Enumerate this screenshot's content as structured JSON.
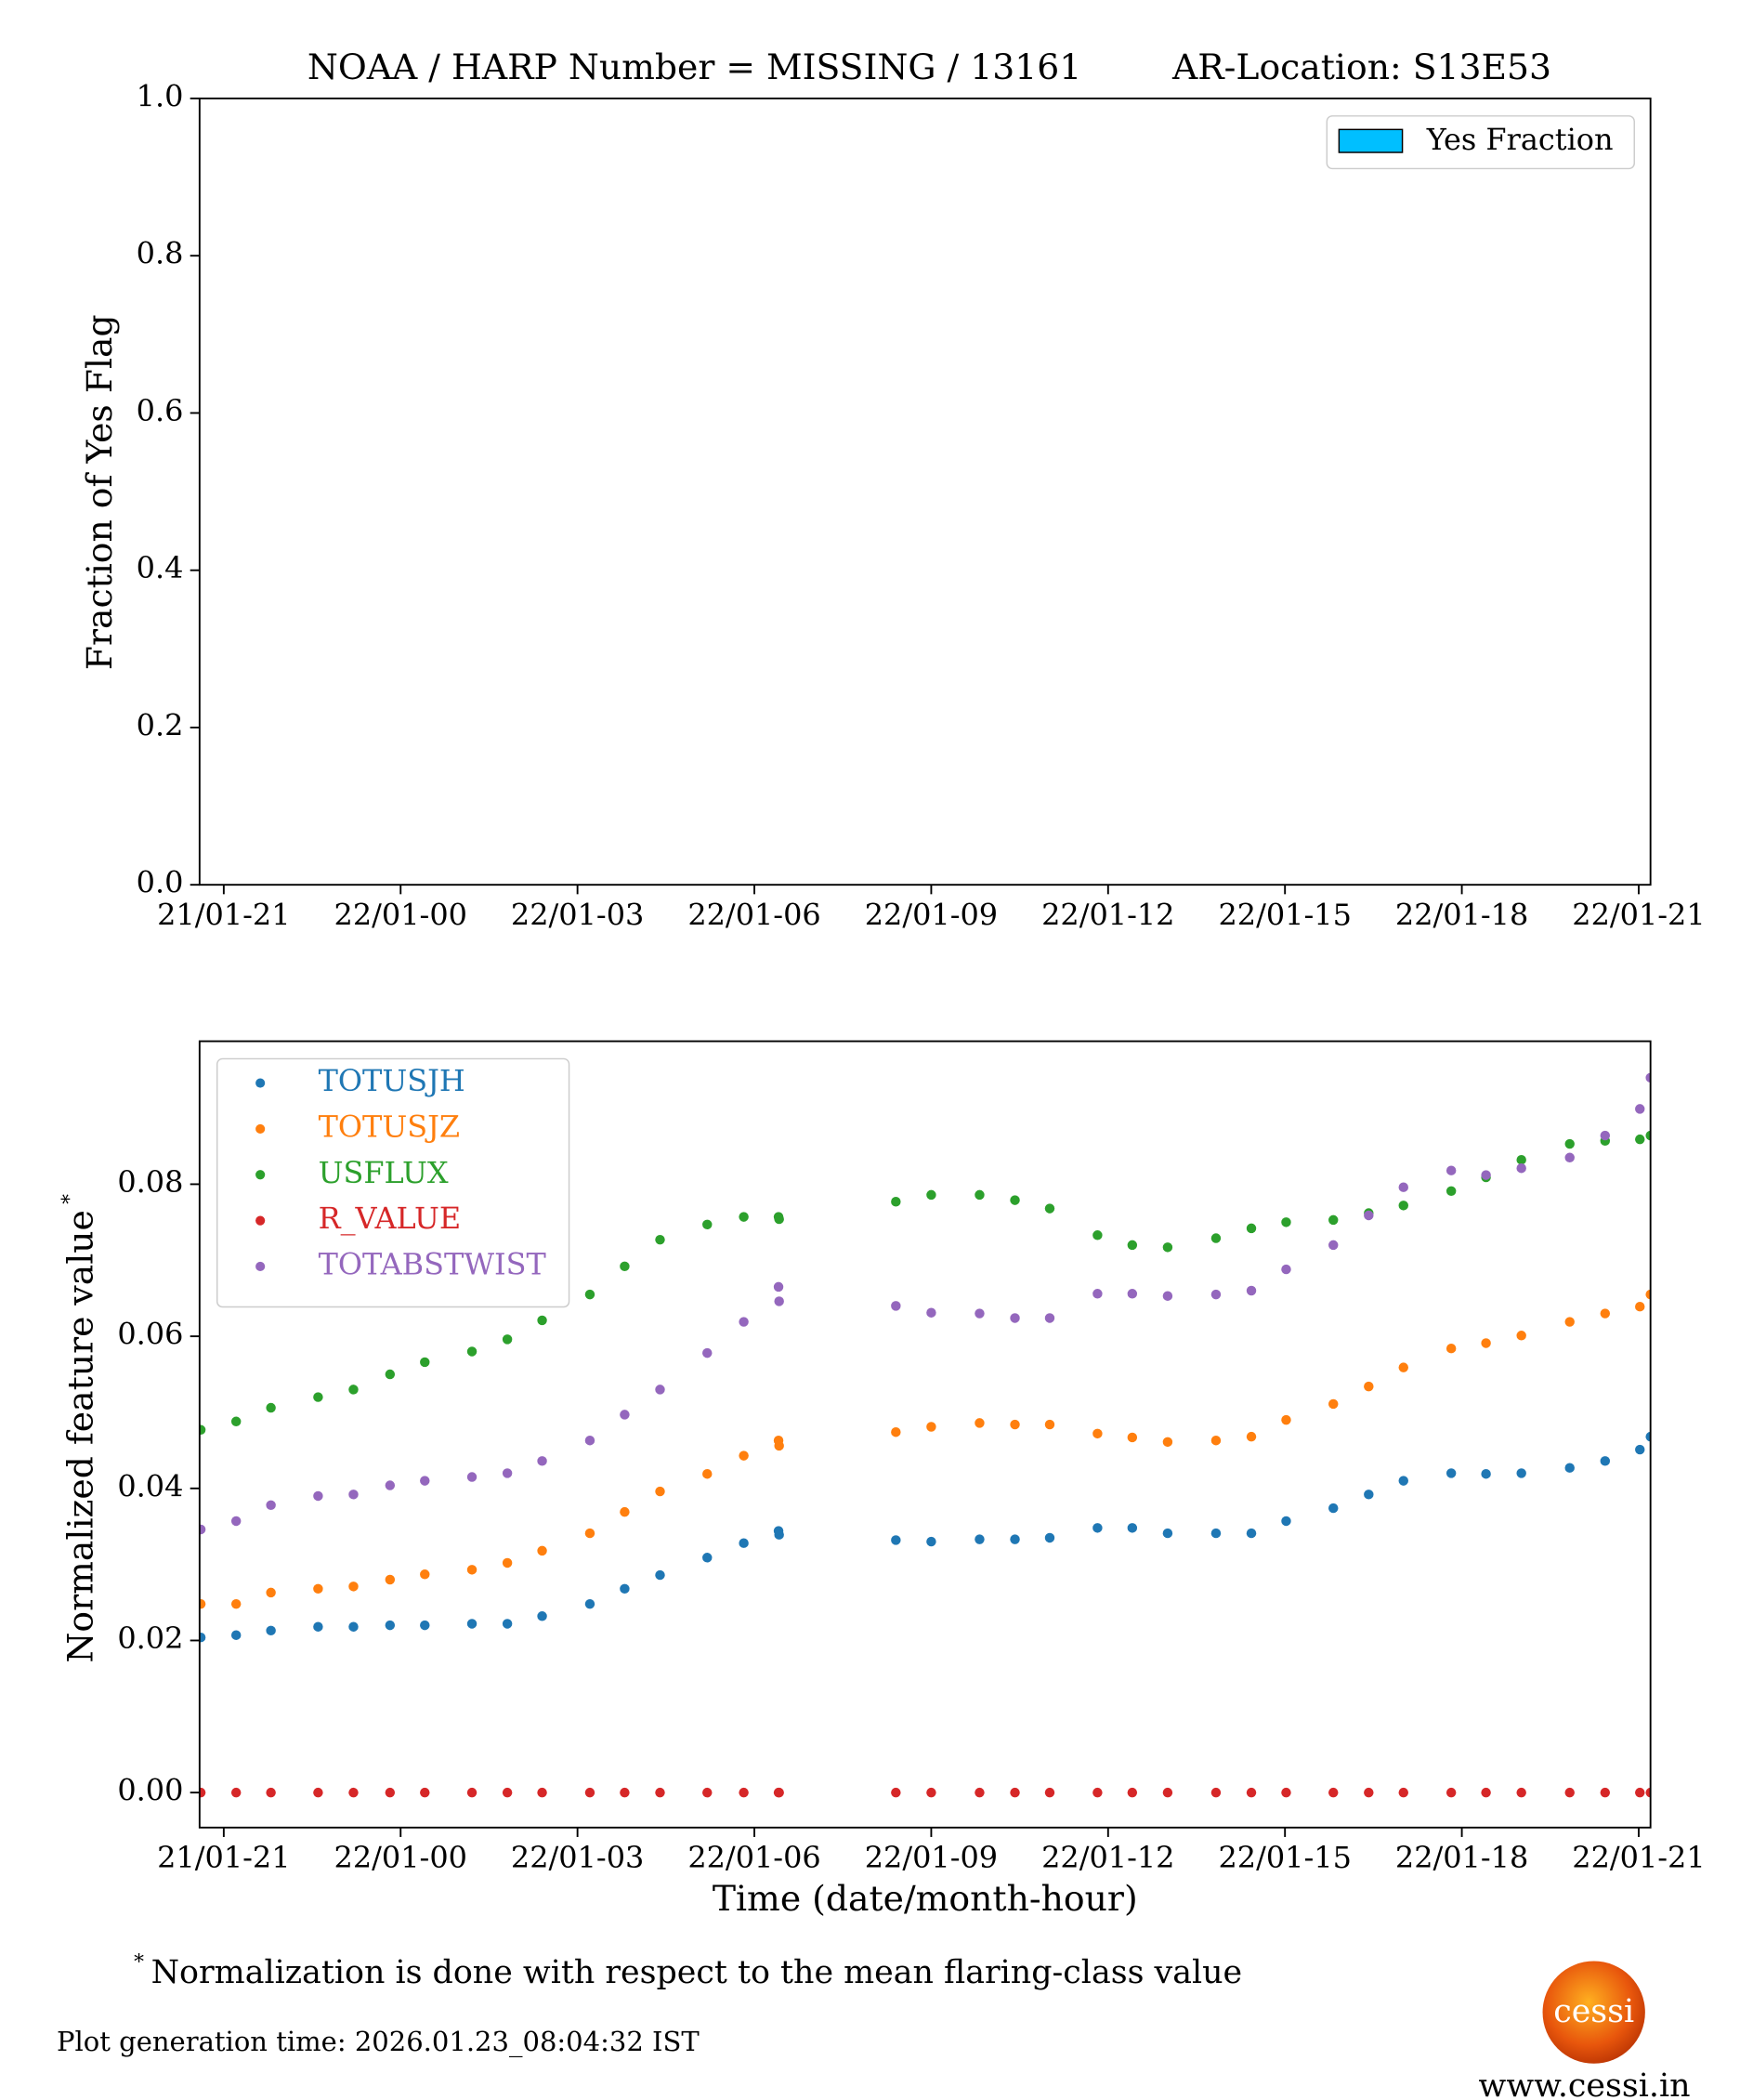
{
  "chart_data": [
    {
      "type": "bar",
      "title": "NOAA / HARP Number = MISSING / 13161",
      "subtitle": "AR-Location: S13E53",
      "y_label": "Fraction of Yes Flag",
      "x": [],
      "series": [
        {
          "name": "Yes Fraction",
          "color": "#00bfff",
          "values": []
        }
      ],
      "xlim": [
        20.59,
        45.2
      ],
      "xticks": [
        {
          "value": 21,
          "label": "21/01-21"
        },
        {
          "value": 24,
          "label": "22/01-00"
        },
        {
          "value": 27,
          "label": "22/01-03"
        },
        {
          "value": 30,
          "label": "22/01-06"
        },
        {
          "value": 33,
          "label": "22/01-09"
        },
        {
          "value": 36,
          "label": "22/01-12"
        },
        {
          "value": 39,
          "label": "22/01-15"
        },
        {
          "value": 42,
          "label": "22/01-18"
        },
        {
          "value": 45,
          "label": "22/01-21"
        }
      ],
      "ylim": [
        0,
        1
      ],
      "yticks": [
        {
          "value": 0,
          "label": "0.0"
        },
        {
          "value": 0.2,
          "label": "0.2"
        },
        {
          "value": 0.4,
          "label": "0.4"
        },
        {
          "value": 0.6,
          "label": "0.6"
        },
        {
          "value": 0.8,
          "label": "0.8"
        },
        {
          "value": 1,
          "label": "1.0"
        }
      ],
      "legend": "upper right"
    },
    {
      "type": "scatter",
      "x_label": "Time (date/month-hour)",
      "y_label": "Normalized feature value",
      "y_label_mark": "*",
      "x": [
        20.61,
        21.21,
        21.8,
        22.6,
        23.2,
        23.82,
        24.41,
        25.21,
        25.81,
        26.4,
        27.21,
        27.8,
        28.4,
        29.2,
        29.82,
        30.41,
        30.42,
        32.4,
        33.0,
        33.82,
        34.42,
        35.01,
        35.82,
        36.41,
        37.01,
        37.83,
        38.43,
        39.02,
        39.82,
        40.42,
        41.01,
        41.82,
        42.41,
        43.01,
        43.83,
        44.43,
        45.02,
        45.2
      ],
      "series": [
        {
          "name": "TOTUSJH",
          "color": "#1f77b4",
          "values": [
            0.0204,
            0.0207,
            0.0213,
            0.0218,
            0.0218,
            0.022,
            0.022,
            0.0222,
            0.0222,
            0.0232,
            0.0248,
            0.0268,
            0.0286,
            0.0309,
            0.0328,
            0.0344,
            0.0339,
            0.0332,
            0.033,
            0.0333,
            0.0333,
            0.0335,
            0.0348,
            0.0348,
            0.0341,
            0.0341,
            0.0341,
            0.0357,
            0.0374,
            0.0392,
            0.041,
            0.042,
            0.0419,
            0.042,
            0.0427,
            0.0436,
            0.0451,
            0.0468
          ]
        },
        {
          "name": "TOTUSJZ",
          "color": "#ff7f0e",
          "values": [
            0.0248,
            0.0248,
            0.0263,
            0.0268,
            0.0271,
            0.028,
            0.0287,
            0.0293,
            0.0302,
            0.0318,
            0.0341,
            0.0369,
            0.0396,
            0.0419,
            0.0443,
            0.0463,
            0.0456,
            0.0474,
            0.0481,
            0.0486,
            0.0484,
            0.0484,
            0.0472,
            0.0467,
            0.0461,
            0.0463,
            0.0468,
            0.049,
            0.0511,
            0.0534,
            0.0559,
            0.0584,
            0.0591,
            0.0601,
            0.0619,
            0.063,
            0.0639,
            0.0655
          ]
        },
        {
          "name": "USFLUX",
          "color": "#2ca02c",
          "values": [
            0.0477,
            0.0488,
            0.0506,
            0.052,
            0.053,
            0.055,
            0.0566,
            0.058,
            0.0596,
            0.0621,
            0.0655,
            0.0692,
            0.0727,
            0.0747,
            0.0757,
            0.0757,
            0.0754,
            0.0777,
            0.0786,
            0.0786,
            0.0779,
            0.0768,
            0.0733,
            0.072,
            0.0717,
            0.0729,
            0.0742,
            0.075,
            0.0753,
            0.0762,
            0.0772,
            0.0791,
            0.0809,
            0.0832,
            0.0853,
            0.0857,
            0.0859,
            0.0864
          ]
        },
        {
          "name": "R_VALUE",
          "color": "#d62728",
          "values": [
            0,
            0,
            0,
            0,
            0,
            0,
            0,
            0,
            0,
            0,
            0,
            0,
            0,
            0,
            0,
            0,
            0,
            0,
            0,
            0,
            0,
            0,
            0,
            0,
            0,
            0,
            0,
            0,
            0,
            0,
            0,
            0,
            0,
            0,
            0,
            0,
            0,
            0
          ]
        },
        {
          "name": "TOTABSTWIST",
          "color": "#9467bd",
          "values": [
            0.0346,
            0.0357,
            0.0378,
            0.039,
            0.0392,
            0.0404,
            0.041,
            0.0415,
            0.042,
            0.0436,
            0.0463,
            0.0497,
            0.053,
            0.0578,
            0.0619,
            0.0665,
            0.0646,
            0.064,
            0.0631,
            0.063,
            0.0624,
            0.0624,
            0.0656,
            0.0656,
            0.0653,
            0.0655,
            0.066,
            0.0688,
            0.072,
            0.0759,
            0.0796,
            0.0818,
            0.0812,
            0.0821,
            0.0835,
            0.0864,
            0.0899,
            0.094
          ]
        }
      ],
      "xlim": [
        20.59,
        45.2
      ],
      "xticks": [
        {
          "value": 21,
          "label": "21/01-21"
        },
        {
          "value": 24,
          "label": "22/01-00"
        },
        {
          "value": 27,
          "label": "22/01-03"
        },
        {
          "value": 30,
          "label": "22/01-06"
        },
        {
          "value": 33,
          "label": "22/01-09"
        },
        {
          "value": 36,
          "label": "22/01-12"
        },
        {
          "value": 39,
          "label": "22/01-15"
        },
        {
          "value": 42,
          "label": "22/01-18"
        },
        {
          "value": 45,
          "label": "22/01-21"
        }
      ],
      "ylim": [
        -0.0046,
        0.0988
      ],
      "yticks": [
        {
          "value": 0,
          "label": "0.00"
        },
        {
          "value": 0.02,
          "label": "0.02"
        },
        {
          "value": 0.04,
          "label": "0.04"
        },
        {
          "value": 0.06,
          "label": "0.06"
        },
        {
          "value": 0.08,
          "label": "0.08"
        }
      ],
      "legend": "upper left"
    }
  ],
  "footnote": {
    "mark": "*",
    "text": "Normalization is done with respect to the mean flaring-class value"
  },
  "generation_time": "Plot generation time: 2026.01.23_08:04:32 IST",
  "logo": "cessi",
  "website": "www.cessi.in"
}
